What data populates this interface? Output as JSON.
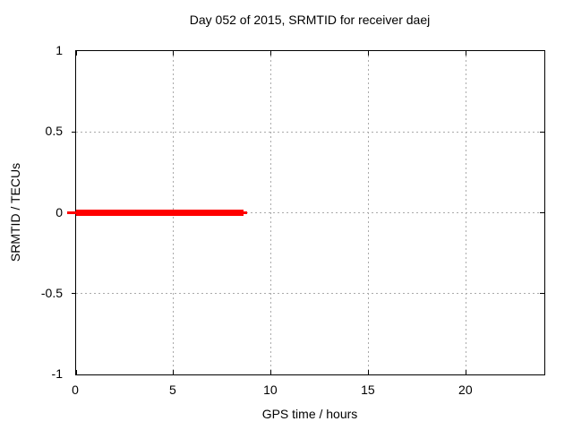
{
  "figure": {
    "background": "#ffffff",
    "text_color": "#000000",
    "axis_color": "#000000",
    "grid_color": "#aaaaaa"
  },
  "chart_data": {
    "type": "line",
    "title": "Day 052 of 2015, SRMTID for receiver daej",
    "xlabel": "GPS time / hours",
    "ylabel": "SRMTID / TECUs",
    "xlim": [
      0,
      24
    ],
    "ylim": [
      -1,
      1
    ],
    "xticks": [
      0,
      5,
      10,
      15,
      20
    ],
    "xtick_labels": [
      "0",
      "5",
      "10",
      "15",
      "20"
    ],
    "yticks": [
      1,
      0.5,
      0,
      -0.5,
      -1
    ],
    "ytick_labels": [
      "1",
      "0.5",
      "0",
      "-0.5",
      "-1"
    ],
    "grid": true,
    "legend": "none",
    "series": [
      {
        "name": "SRMTID",
        "color": "#ff0000",
        "constant_y": 0,
        "x_start": 0,
        "x_end": 8.6,
        "segments": [
          {
            "x_start": -0.45,
            "x_end": 0,
            "y": 0,
            "thickness_px": 3
          },
          {
            "x_start": 0,
            "x_end": 8.6,
            "y": 0,
            "thickness_px": 7
          },
          {
            "x_start": 8.6,
            "x_end": 8.75,
            "y": 0,
            "thickness_px": 3
          }
        ]
      }
    ]
  }
}
